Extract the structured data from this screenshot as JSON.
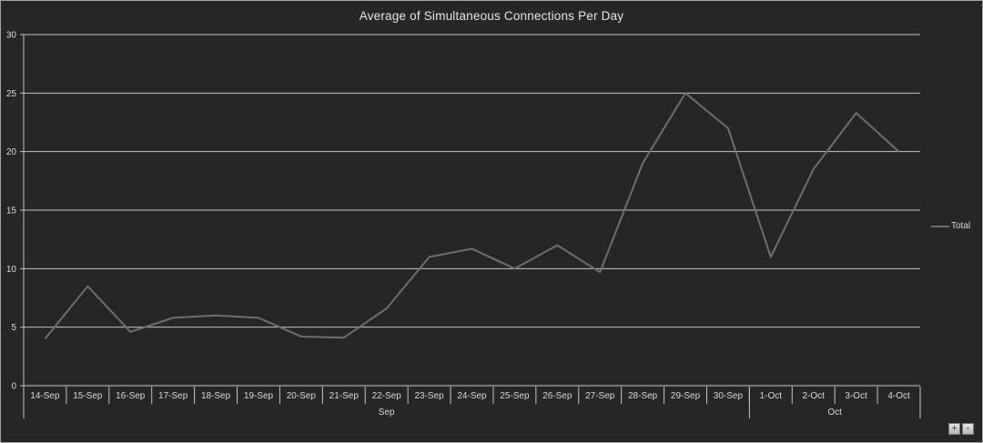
{
  "window": {
    "background": "#262626",
    "border_color": "#a6a6a6"
  },
  "chart_data": {
    "type": "line",
    "title": "Average of Simultaneous Connections Per Day",
    "x": [
      "14-Sep",
      "15-Sep",
      "16-Sep",
      "17-Sep",
      "18-Sep",
      "19-Sep",
      "20-Sep",
      "21-Sep",
      "22-Sep",
      "23-Sep",
      "24-Sep",
      "25-Sep",
      "26-Sep",
      "27-Sep",
      "28-Sep",
      "29-Sep",
      "30-Sep",
      "1-Oct",
      "2-Oct",
      "3-Oct",
      "4-Oct"
    ],
    "series": [
      {
        "name": "Total",
        "values": [
          4,
          8.5,
          4.6,
          5.8,
          6,
          5.8,
          4.2,
          4.1,
          6.6,
          11,
          11.7,
          10,
          12,
          9.7,
          19,
          25,
          22,
          11,
          18.5,
          23.3,
          20
        ]
      }
    ],
    "x_groups": [
      {
        "label": "Sep",
        "count": 17
      },
      {
        "label": "Oct",
        "count": 4
      }
    ],
    "xlabel": "",
    "ylabel": "",
    "ylim": [
      0,
      30
    ],
    "y_ticks": [
      0,
      5,
      10,
      15,
      20,
      25,
      30
    ],
    "grid": true,
    "legend_position": "right",
    "colors": {
      "series": "#6f6f6f",
      "gridline": "#c6c6c6",
      "axis": "#c6c6c6",
      "text": "#d9d9d9",
      "title": "#e6e6e6"
    }
  },
  "controls": {
    "expand_label": "+",
    "collapse_label": "-"
  }
}
